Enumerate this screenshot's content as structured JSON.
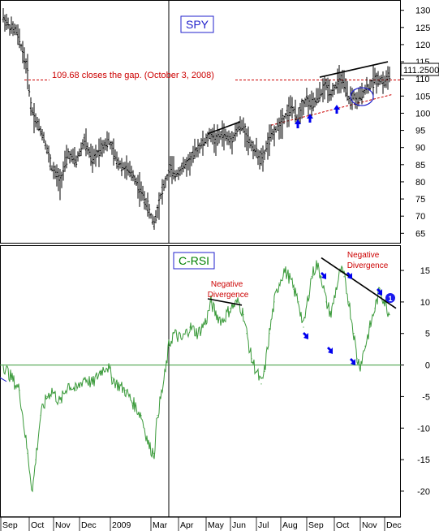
{
  "chart_data": [
    {
      "type": "bar",
      "subtype": "ohlc-price",
      "title": "SPY",
      "ylim": [
        62,
        133
      ],
      "y_ticks": [
        65,
        70,
        75,
        80,
        85,
        90,
        95,
        100,
        105,
        110,
        115,
        120,
        125,
        130
      ],
      "last_price_label": "111.2500",
      "gap_level": 109.68,
      "gap_annotation": "109.68 closes the gap. (October 3, 2008)",
      "x": [
        0,
        8,
        16,
        24,
        30,
        34,
        40,
        50,
        60,
        70,
        80,
        90,
        100,
        110,
        120,
        130,
        140,
        150,
        160,
        168,
        176,
        182,
        186,
        190,
        194,
        200,
        206,
        212,
        220,
        230,
        240,
        250,
        256,
        262,
        270,
        280,
        290,
        296,
        302,
        308,
        314,
        320,
        324,
        330,
        338,
        344,
        350,
        356,
        362,
        368,
        374,
        380,
        386,
        392,
        398,
        404,
        410,
        416,
        420,
        426,
        432,
        436,
        440,
        446,
        452,
        458,
        464,
        470,
        476
      ],
      "values": [
        128,
        125,
        124,
        118,
        112,
        102,
        98,
        93,
        84,
        80,
        88,
        86,
        92,
        86,
        90,
        92,
        86,
        84,
        82,
        78,
        74,
        70,
        68,
        72,
        76,
        80,
        84,
        82,
        84,
        86,
        90,
        92,
        94,
        92,
        94,
        92,
        96,
        96,
        92,
        90,
        88,
        86,
        90,
        93,
        96,
        98,
        100,
        102,
        98,
        102,
        104,
        102,
        104,
        106,
        108,
        106,
        108,
        110,
        108,
        104,
        105,
        103,
        105,
        107,
        108,
        110,
        110,
        109,
        111
      ]
    },
    {
      "type": "line",
      "title": "C-RSI",
      "ylim": [
        -24,
        19
      ],
      "y_ticks": [
        -20,
        -15,
        -10,
        -5,
        0,
        5,
        10,
        15
      ],
      "x": [
        0,
        10,
        20,
        30,
        36,
        40,
        46,
        54,
        60,
        70,
        80,
        90,
        100,
        110,
        120,
        128,
        134,
        140,
        150,
        160,
        170,
        180,
        186,
        190,
        196,
        200,
        204,
        210,
        220,
        230,
        240,
        250,
        256,
        262,
        270,
        280,
        290,
        296,
        300,
        306,
        312,
        318,
        322,
        328,
        334,
        340,
        346,
        352,
        358,
        364,
        370,
        376,
        380,
        386,
        392,
        398,
        404,
        410,
        416,
        420,
        426,
        432,
        436,
        440,
        446,
        452,
        458,
        464,
        470,
        476
      ],
      "values": [
        0,
        -2,
        -4,
        -14,
        -20,
        -15,
        -8,
        -5,
        -4,
        -6,
        -3,
        -4,
        -2,
        -3,
        -1,
        0,
        -2,
        -3,
        -4,
        -6,
        -8,
        -13,
        -14,
        -8,
        -4,
        -1,
        3,
        5,
        4,
        6,
        5,
        7,
        10,
        8,
        7,
        9,
        10,
        8,
        5,
        1,
        -1,
        -3,
        -1,
        5,
        10,
        13,
        15,
        14,
        12,
        10,
        6,
        11,
        14,
        16,
        14,
        10,
        8,
        12,
        15,
        14,
        10,
        5,
        1,
        0,
        3,
        6,
        9,
        12,
        10,
        8
      ]
    }
  ],
  "months": [
    "Sep",
    "Oct",
    "Nov",
    "Dec",
    "2009",
    "Mar",
    "Apr",
    "May",
    "Jun",
    "Jul",
    "Aug",
    "Sep",
    "Oct",
    "Nov",
    "Dec"
  ],
  "annotations": {
    "rsi_div_1": [
      "Negative",
      "Divergence"
    ],
    "rsi_div_2": [
      "Negative",
      "Divergence"
    ],
    "badge": "1"
  },
  "colors": {
    "price": "#000000",
    "rsi": "#3a9a3a",
    "label_border": "#2222cc",
    "rsi_label": "#008000",
    "annotation": "#cc0000",
    "arrow": "#0000ee",
    "axis": "#000000"
  }
}
